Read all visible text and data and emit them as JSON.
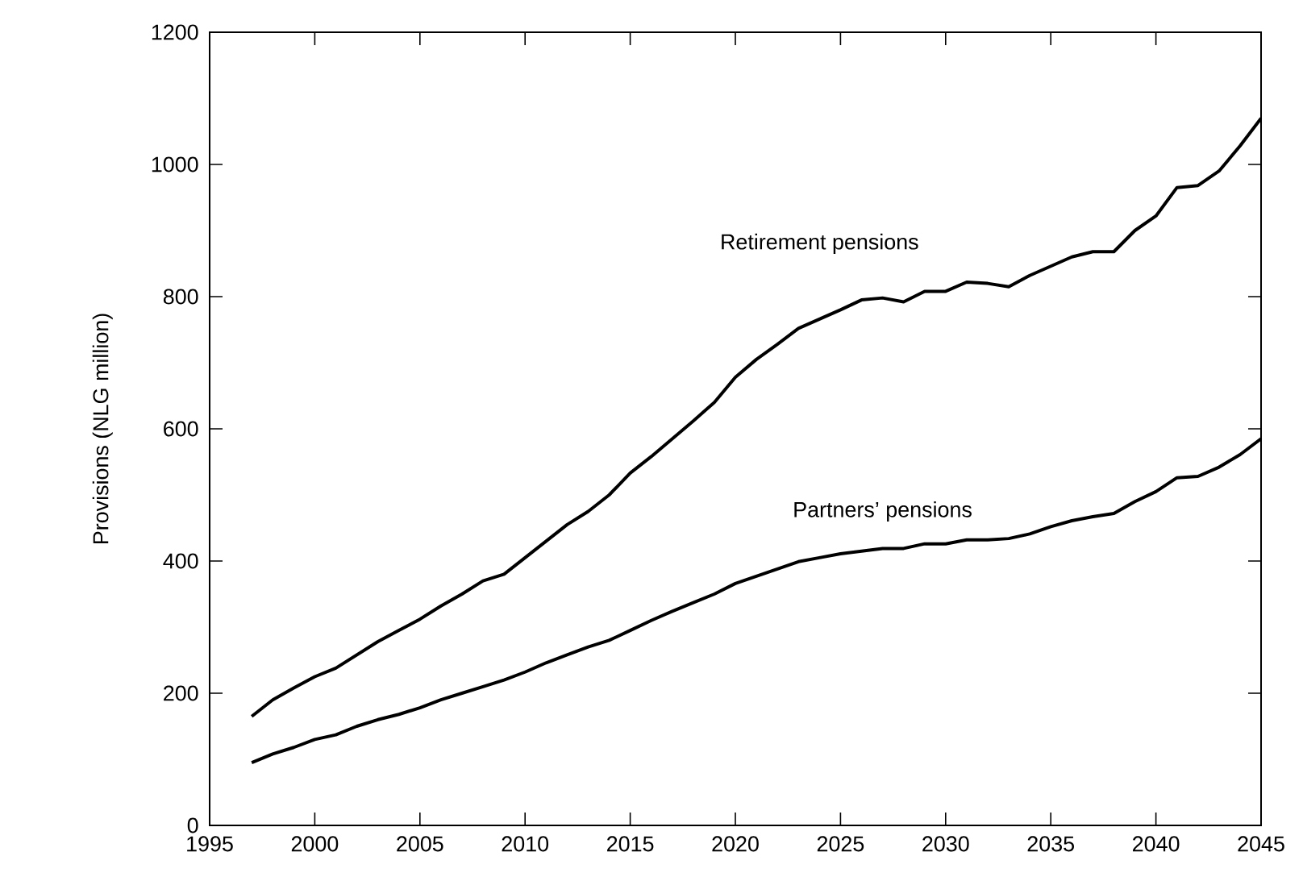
{
  "chart_data": {
    "type": "line",
    "ylabel": "Provisions (NLG million)",
    "x": [
      1997,
      1998,
      1999,
      2000,
      2001,
      2002,
      2003,
      2004,
      2005,
      2006,
      2007,
      2008,
      2009,
      2010,
      2011,
      2012,
      2013,
      2014,
      2015,
      2016,
      2017,
      2018,
      2019,
      2020,
      2021,
      2022,
      2023,
      2024,
      2025,
      2026,
      2027,
      2028,
      2029,
      2030,
      2031,
      2032,
      2033,
      2034,
      2035,
      2036,
      2037,
      2038,
      2039,
      2040,
      2041,
      2042,
      2043,
      2044,
      2045
    ],
    "series": [
      {
        "name": "Retirement pensions",
        "color": "#000000",
        "values": [
          165,
          190,
          208,
          225,
          238,
          258,
          278,
          295,
          312,
          332,
          350,
          370,
          380,
          405,
          430,
          455,
          475,
          500,
          533,
          558,
          585,
          612,
          640,
          678,
          705,
          728,
          752,
          766,
          780,
          795,
          798,
          792,
          808,
          808,
          822,
          820,
          815,
          832,
          846,
          860,
          868,
          868,
          900,
          922,
          965,
          968,
          990,
          1028,
          1070
        ]
      },
      {
        "name": "Partners’ pensions",
        "color": "#000000",
        "values": [
          95,
          108,
          118,
          130,
          137,
          150,
          160,
          168,
          178,
          190,
          200,
          210,
          220,
          232,
          246,
          258,
          270,
          280,
          295,
          310,
          324,
          337,
          350,
          366,
          377,
          388,
          399,
          405,
          411,
          415,
          419,
          419,
          426,
          426,
          432,
          432,
          434,
          441,
          452,
          461,
          467,
          472,
          490,
          505,
          526,
          528,
          542,
          561,
          585
        ]
      }
    ],
    "xlim": [
      1995,
      2045
    ],
    "xticks": [
      1995,
      2000,
      2005,
      2010,
      2015,
      2020,
      2025,
      2030,
      2035,
      2040,
      2045
    ],
    "ylim": [
      0,
      1200
    ],
    "yticks": [
      0,
      200,
      400,
      600,
      800,
      1000,
      1200
    ],
    "grid": false,
    "legend": false,
    "marker": "none",
    "line_style": "solid"
  }
}
